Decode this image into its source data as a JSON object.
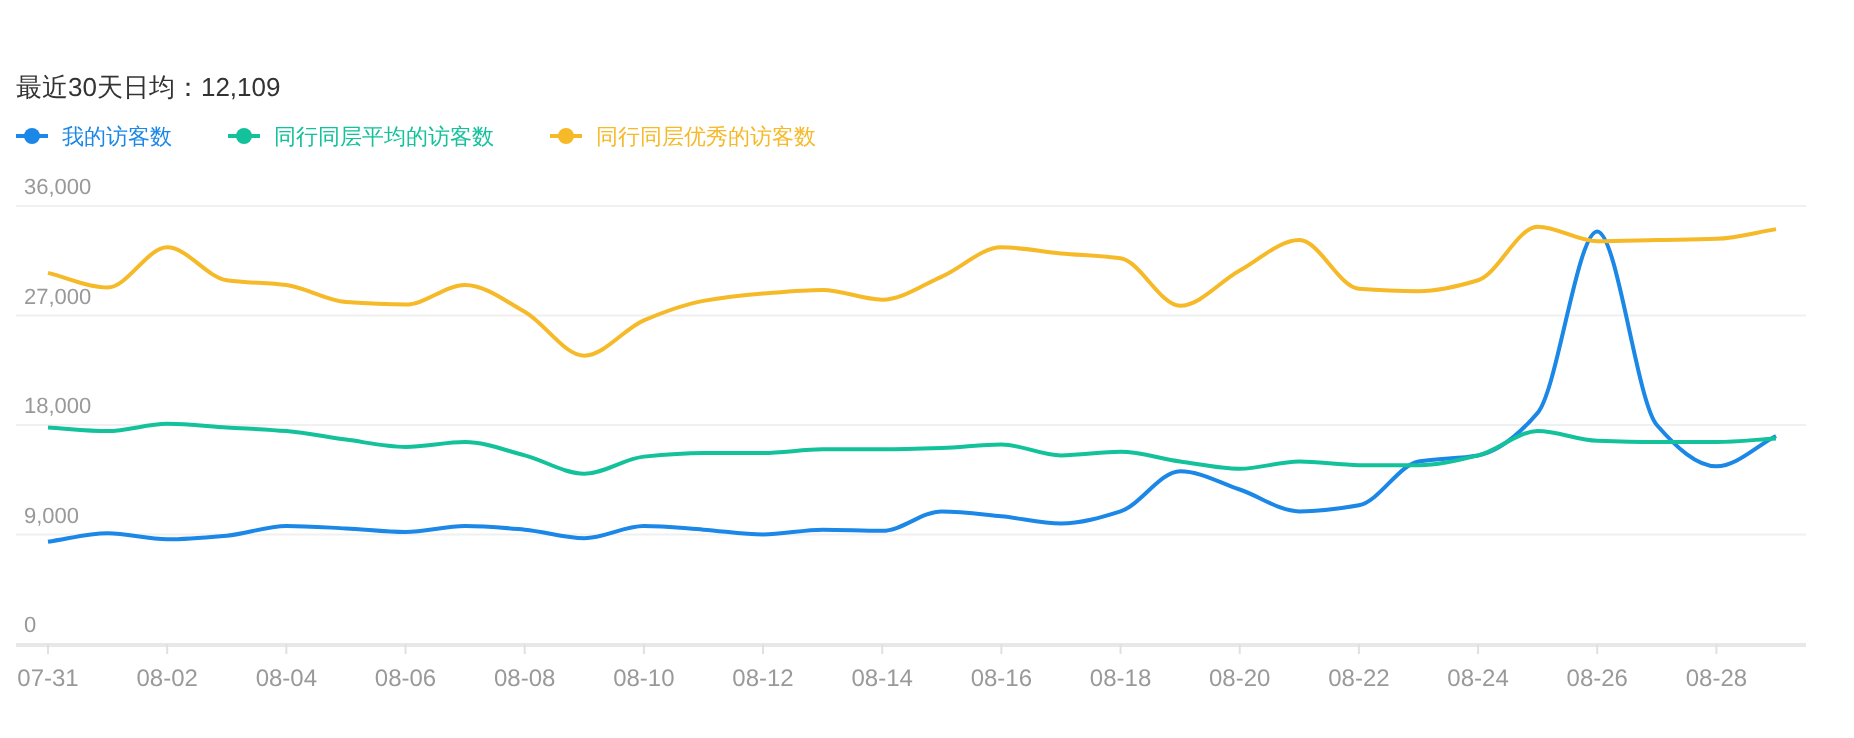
{
  "chart_data": {
    "type": "line",
    "title": "最近30天日均：12,109",
    "categories": [
      "07-31",
      null,
      "08-02",
      null,
      "08-04",
      null,
      "08-06",
      null,
      "08-08",
      null,
      "08-10",
      null,
      "08-12",
      null,
      "08-14",
      null,
      "08-16",
      null,
      "08-18",
      null,
      "08-20",
      null,
      "08-22",
      null,
      "08-24",
      null,
      "08-26",
      null,
      "08-28",
      null
    ],
    "series": [
      {
        "name": "我的访客数",
        "color": "#1b87e6",
        "values": [
          8400,
          9100,
          8600,
          8900,
          9700,
          9500,
          9200,
          9700,
          9400,
          8700,
          9700,
          9400,
          9000,
          9400,
          9300,
          10900,
          10500,
          9900,
          10900,
          14200,
          12700,
          10900,
          11400,
          15000,
          15500,
          19000,
          33900,
          18000,
          14600,
          17100
        ]
      },
      {
        "name": "同行同层平均的访客数",
        "color": "#13c19b",
        "values": [
          17800,
          17500,
          18100,
          17800,
          17500,
          16800,
          16200,
          16600,
          15500,
          14000,
          15400,
          15700,
          15700,
          16000,
          16000,
          16100,
          16400,
          15500,
          15800,
          15000,
          14400,
          15000,
          14700,
          14700,
          15500,
          17500,
          16700,
          16600,
          16600,
          16900
        ]
      },
      {
        "name": "同行同层优秀的访客数",
        "color": "#f6b928",
        "values": [
          30500,
          29300,
          32600,
          29900,
          29500,
          28100,
          27900,
          29500,
          27300,
          23700,
          26600,
          28200,
          28800,
          29100,
          28300,
          30200,
          32600,
          32100,
          31700,
          27800,
          30700,
          33200,
          29200,
          29000,
          29900,
          34300,
          33100,
          33200,
          33300,
          34100
        ]
      }
    ],
    "ylim": [
      0,
      36000
    ],
    "yticks": [
      {
        "value": 0,
        "label": "0"
      },
      {
        "value": 9000,
        "label": "9,000"
      },
      {
        "value": 18000,
        "label": "18,000"
      },
      {
        "value": 27000,
        "label": "27,000"
      },
      {
        "value": 36000,
        "label": "36,000"
      }
    ],
    "grid": "y",
    "legend": "top left",
    "marker": "none"
  }
}
